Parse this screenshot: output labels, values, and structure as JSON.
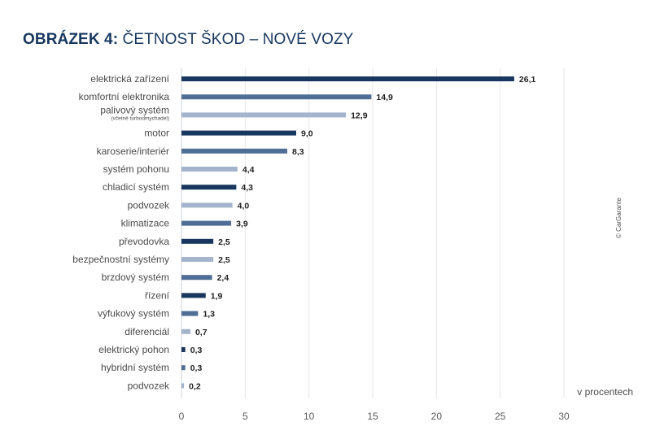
{
  "title": {
    "strong": "OBRÁZEK 4:",
    "rest": "ČETNOST ŠKOD – NOVÉ VOZY"
  },
  "copyright": "© CarGarante",
  "colors": {
    "dark": "#17375e",
    "medium": "#4f6e96",
    "light": "#a3b4cc",
    "title": "#17375e"
  },
  "chart_data": {
    "type": "bar",
    "orientation": "horizontal",
    "xlabel": "v procentech",
    "xlim": [
      0,
      30
    ],
    "xticks": [
      0,
      5,
      10,
      15,
      20,
      25,
      30
    ],
    "grid": true,
    "categories": [
      {
        "label": "elektrická zařízení",
        "value": 26.1,
        "value_label": "26,1",
        "shade": "dark"
      },
      {
        "label": "komfortní elektronika",
        "value": 14.9,
        "value_label": "14,9",
        "shade": "medium"
      },
      {
        "label": "palivový systém",
        "sublabel": "(včetně turbodmychadel)",
        "value": 12.9,
        "value_label": "12,9",
        "shade": "light"
      },
      {
        "label": "motor",
        "value": 9.0,
        "value_label": "9,0",
        "shade": "dark"
      },
      {
        "label": "karoserie/interiér",
        "value": 8.3,
        "value_label": "8,3",
        "shade": "medium"
      },
      {
        "label": "systém pohonu",
        "value": 4.4,
        "value_label": "4,4",
        "shade": "light"
      },
      {
        "label": "chladicí systém",
        "value": 4.3,
        "value_label": "4,3",
        "shade": "dark"
      },
      {
        "label": "podvozek",
        "value": 4.0,
        "value_label": "4,0",
        "shade": "light"
      },
      {
        "label": "klimatizace",
        "value": 3.9,
        "value_label": "3,9",
        "shade": "medium"
      },
      {
        "label": "převodovka",
        "value": 2.5,
        "value_label": "2,5",
        "shade": "dark"
      },
      {
        "label": "bezpečnostní systémy",
        "value": 2.5,
        "value_label": "2,5",
        "shade": "light"
      },
      {
        "label": "brzdový systém",
        "value": 2.4,
        "value_label": "2,4",
        "shade": "medium"
      },
      {
        "label": "řízení",
        "value": 1.9,
        "value_label": "1,9",
        "shade": "dark"
      },
      {
        "label": "výfukový systém",
        "value": 1.3,
        "value_label": "1,3",
        "shade": "medium"
      },
      {
        "label": "diferenciál",
        "value": 0.7,
        "value_label": "0,7",
        "shade": "light"
      },
      {
        "label": "elektrický pohon",
        "value": 0.3,
        "value_label": "0,3",
        "shade": "dark"
      },
      {
        "label": "hybridní systém",
        "value": 0.3,
        "value_label": "0,3",
        "shade": "medium"
      },
      {
        "label": "podvozek",
        "value": 0.2,
        "value_label": "0,2",
        "shade": "light"
      }
    ]
  }
}
